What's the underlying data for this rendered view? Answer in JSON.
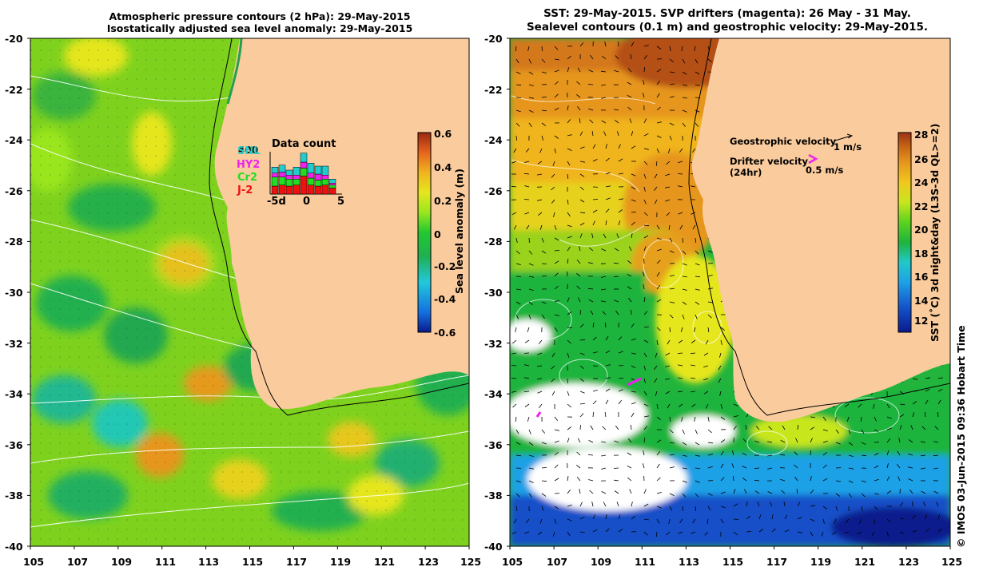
{
  "left_panel": {
    "title_line1": "Atmospheric pressure contours (2 hPa): 29-May-2015",
    "title_line2": "Isostatically adjusted sea level anomaly: 29-May-2015",
    "y_ticks": [
      "-20",
      "-22",
      "-24",
      "-26",
      "-28",
      "-30",
      "-32",
      "-34",
      "-36",
      "-38",
      "-40"
    ],
    "x_ticks": [
      "105",
      "107",
      "109",
      "111",
      "113",
      "115",
      "117",
      "119",
      "121",
      "123",
      "125"
    ],
    "colorbar": {
      "label": "Sea level anomaly (m)",
      "ticks": [
        "0.6",
        "0.4",
        "0.2",
        "0",
        "-0.2",
        "-0.4",
        "-0.6"
      ]
    },
    "data_count": {
      "title": "Data count",
      "ymax_label": "400",
      "satellites": [
        {
          "name": "SNL",
          "color": "#22cccc"
        },
        {
          "name": "HY2",
          "color": "#ee22ee"
        },
        {
          "name": "Cr2",
          "color": "#22dd22"
        },
        {
          "name": "J-2",
          "color": "#ee1111"
        }
      ],
      "x_ticks": [
        "-5d",
        "0",
        "5"
      ],
      "bars": [
        {
          "day": -5,
          "values": [
            60,
            40,
            90,
            80
          ]
        },
        {
          "day": -4,
          "values": [
            70,
            50,
            80,
            90
          ]
        },
        {
          "day": -3,
          "values": [
            50,
            40,
            70,
            80
          ]
        },
        {
          "day": -2,
          "values": [
            80,
            40,
            60,
            90
          ]
        },
        {
          "day": -1,
          "values": [
            90,
            60,
            80,
            180
          ]
        },
        {
          "day": 0,
          "values": [
            100,
            50,
            70,
            90
          ]
        },
        {
          "day": 1,
          "values": [
            80,
            60,
            60,
            80
          ]
        },
        {
          "day": 2,
          "values": [
            90,
            40,
            60,
            90
          ]
        },
        {
          "day": 3,
          "values": [
            40,
            20,
            30,
            60
          ]
        }
      ]
    }
  },
  "right_panel": {
    "title_line1": "SST: 29-May-2015. SVP drifters (magenta): 26 May - 31 May.",
    "title_line2": "Sealevel contours (0.1 m) and geostrophic velocity: 29-May-2015.",
    "y_ticks": [
      "-20",
      "-22",
      "-24",
      "-26",
      "-28",
      "-30",
      "-32",
      "-34",
      "-36",
      "-38",
      "-40"
    ],
    "x_ticks": [
      "105",
      "107",
      "109",
      "111",
      "113",
      "115",
      "117",
      "119",
      "121",
      "123",
      "125"
    ],
    "legend": {
      "geostrophic_label": "Geostrophic velocity",
      "geostrophic_scale": "1 m/s",
      "drifter_label_line1": "Drifter velocity",
      "drifter_label_line2": "(24hr)",
      "drifter_scale": "0.5 m/s"
    },
    "colorbar": {
      "label": "SST (˚C) 3d night&day (L3S-3d QL>=2)",
      "ticks": [
        "28",
        "26",
        "24",
        "22",
        "20",
        "18",
        "16",
        "14",
        "12"
      ]
    }
  },
  "credit": "© IMOS 03-Jun-2015 09:36 Hobart Time",
  "colors": {
    "land": "#facb9c",
    "sla_scale": [
      "#0a1a8c",
      "#1470e0",
      "#22c8dc",
      "#20b050",
      "#22c830",
      "#9ae61e",
      "#e6e61e",
      "#f0b41e",
      "#e6641e",
      "#9a2810"
    ],
    "sst_scale": [
      "#0a1a8c",
      "#1450c8",
      "#1ea0e6",
      "#22c8c8",
      "#1eb43c",
      "#5ad21e",
      "#c8e61e",
      "#f0c81e",
      "#e6961e",
      "#c86414",
      "#9a3214"
    ]
  }
}
